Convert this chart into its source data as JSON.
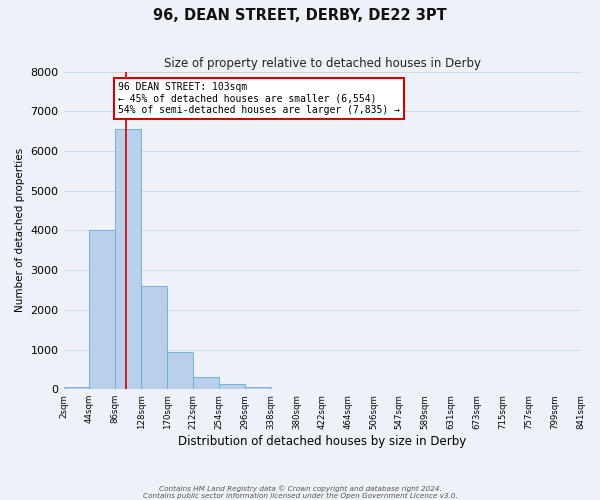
{
  "title": "96, DEAN STREET, DERBY, DE22 3PT",
  "subtitle": "Size of property relative to detached houses in Derby",
  "xlabel": "Distribution of detached houses by size in Derby",
  "ylabel": "Number of detached properties",
  "bin_edges": [
    2,
    44,
    86,
    128,
    170,
    212,
    254,
    296,
    338,
    380,
    422,
    464,
    506,
    547,
    589,
    631,
    673,
    715,
    757,
    799,
    841
  ],
  "bin_labels": [
    "2sqm",
    "44sqm",
    "86sqm",
    "128sqm",
    "170sqm",
    "212sqm",
    "254sqm",
    "296sqm",
    "338sqm",
    "380sqm",
    "422sqm",
    "464sqm",
    "506sqm",
    "547sqm",
    "589sqm",
    "631sqm",
    "673sqm",
    "715sqm",
    "757sqm",
    "799sqm",
    "841sqm"
  ],
  "bar_heights": [
    50,
    4000,
    6550,
    2600,
    950,
    320,
    120,
    50,
    0,
    0,
    0,
    0,
    0,
    0,
    0,
    0,
    0,
    0,
    0,
    0
  ],
  "bar_color": "#b8d0ea",
  "bar_edge_color": "#6aaad4",
  "property_line_x": 103,
  "property_line_color": "#cc0000",
  "annotation_title": "96 DEAN STREET: 103sqm",
  "annotation_line1": "← 45% of detached houses are smaller (6,554)",
  "annotation_line2": "54% of semi-detached houses are larger (7,835) →",
  "annotation_box_facecolor": "#ffffff",
  "annotation_box_edgecolor": "#cc0000",
  "ylim": [
    0,
    8000
  ],
  "yticks": [
    0,
    1000,
    2000,
    3000,
    4000,
    5000,
    6000,
    7000,
    8000
  ],
  "grid_color": "#d0d8e8",
  "background_color": "#eef2f8",
  "footer_line1": "Contains HM Land Registry data © Crown copyright and database right 2024.",
  "footer_line2": "Contains public sector information licensed under the Open Government Licence v3.0."
}
